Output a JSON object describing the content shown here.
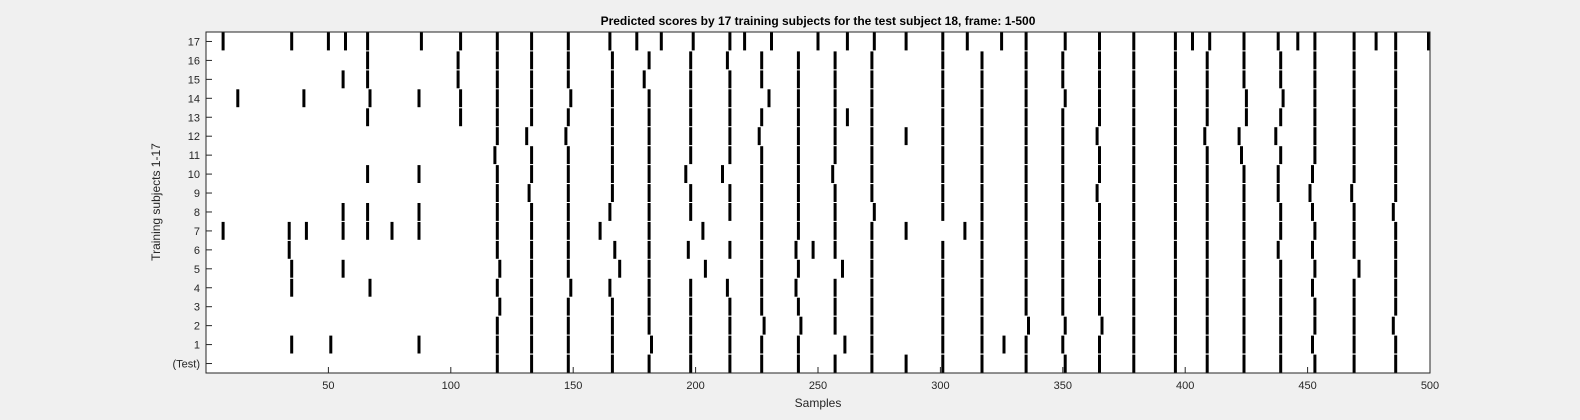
{
  "chart_data": {
    "type": "raster",
    "title": "Predicted scores by 17 training subjects for the test subject 18, frame: 1-500",
    "xlabel": "Samples",
    "ylabel": "Training subjects 1-17",
    "xlim": [
      0,
      500
    ],
    "xticks": [
      50,
      100,
      150,
      200,
      250,
      300,
      350,
      400,
      450,
      500
    ],
    "row_labels": [
      "17",
      "16",
      "15",
      "14",
      "13",
      "12",
      "11",
      "10",
      "9",
      "8",
      "7",
      "6",
      "5",
      "4",
      "3",
      "2",
      "1",
      "(Test)"
    ],
    "colors": {
      "background": "#f0f0f0",
      "plot": "#ffffff",
      "mark": "#000000"
    },
    "rows": [
      {
        "label": "17",
        "x": [
          7,
          35,
          50,
          57,
          66,
          88,
          104,
          119,
          133,
          148,
          165,
          176,
          186,
          199,
          214,
          220,
          231,
          250,
          262,
          273,
          286,
          301,
          311,
          325,
          335,
          351,
          365,
          379,
          396,
          403,
          410,
          424,
          438,
          446,
          453,
          469,
          478,
          486,
          500
        ]
      },
      {
        "label": "16",
        "x": [
          66,
          103,
          119,
          133,
          148,
          166,
          181,
          198,
          213,
          227,
          242,
          257,
          272,
          301,
          317,
          335,
          350,
          365,
          379,
          396,
          409,
          424,
          439,
          453,
          469,
          486
        ]
      },
      {
        "label": "15",
        "x": [
          56,
          66,
          103,
          119,
          133,
          148,
          166,
          179,
          198,
          214,
          227,
          242,
          257,
          272,
          301,
          317,
          335,
          350,
          365,
          379,
          396,
          409,
          424,
          439,
          453,
          469,
          486
        ]
      },
      {
        "label": "14",
        "x": [
          13,
          40,
          67,
          87,
          104,
          119,
          133,
          149,
          166,
          181,
          198,
          214,
          230,
          242,
          257,
          272,
          301,
          317,
          335,
          351,
          365,
          379,
          396,
          409,
          425,
          440,
          453,
          469,
          486
        ]
      },
      {
        "label": "13",
        "x": [
          66,
          104,
          119,
          133,
          148,
          166,
          181,
          198,
          214,
          227,
          242,
          257,
          262,
          272,
          301,
          317,
          335,
          350,
          365,
          379,
          396,
          409,
          425,
          439,
          453,
          469,
          486
        ]
      },
      {
        "label": "12",
        "x": [
          119,
          131,
          147,
          166,
          181,
          198,
          214,
          226,
          242,
          257,
          272,
          286,
          301,
          317,
          335,
          350,
          364,
          379,
          396,
          408,
          422,
          437,
          453,
          469,
          486
        ]
      },
      {
        "label": "11",
        "x": [
          118,
          133,
          148,
          166,
          181,
          198,
          214,
          227,
          242,
          257,
          272,
          301,
          317,
          335,
          350,
          365,
          379,
          396,
          409,
          423,
          439,
          453,
          469,
          486
        ]
      },
      {
        "label": "10",
        "x": [
          66,
          87,
          119,
          133,
          148,
          166,
          181,
          196,
          211,
          227,
          242,
          256,
          272,
          301,
          317,
          335,
          350,
          365,
          379,
          396,
          409,
          424,
          438,
          452,
          469,
          486
        ]
      },
      {
        "label": "9",
        "x": [
          119,
          132,
          148,
          166,
          181,
          198,
          214,
          227,
          242,
          257,
          272,
          301,
          317,
          335,
          350,
          364,
          379,
          396,
          409,
          424,
          438,
          451,
          468,
          486
        ]
      },
      {
        "label": "8",
        "x": [
          56,
          66,
          87,
          119,
          133,
          148,
          165,
          181,
          198,
          214,
          227,
          242,
          257,
          273,
          301,
          317,
          335,
          350,
          365,
          379,
          396,
          409,
          424,
          439,
          452,
          469,
          485
        ]
      },
      {
        "label": "7",
        "x": [
          7,
          34,
          41,
          56,
          66,
          76,
          87,
          119,
          133,
          148,
          161,
          181,
          203,
          227,
          242,
          257,
          272,
          286,
          310,
          317,
          335,
          350,
          365,
          379,
          396,
          409,
          424,
          439,
          453,
          469,
          486
        ]
      },
      {
        "label": "6",
        "x": [
          34,
          119,
          133,
          148,
          167,
          181,
          197,
          214,
          227,
          241,
          248,
          257,
          272,
          301,
          317,
          335,
          350,
          365,
          379,
          396,
          409,
          424,
          438,
          452,
          469,
          486
        ]
      },
      {
        "label": "5",
        "x": [
          35,
          56,
          120,
          133,
          148,
          169,
          181,
          204,
          227,
          242,
          260,
          272,
          301,
          317,
          335,
          350,
          365,
          379,
          396,
          409,
          424,
          439,
          453,
          471,
          486
        ]
      },
      {
        "label": "4",
        "x": [
          35,
          67,
          119,
          133,
          149,
          165,
          181,
          198,
          213,
          227,
          241,
          257,
          272,
          301,
          317,
          335,
          350,
          365,
          379,
          396,
          409,
          424,
          439,
          452,
          469,
          486
        ]
      },
      {
        "label": "3",
        "x": [
          120,
          133,
          148,
          166,
          181,
          198,
          214,
          227,
          242,
          257,
          272,
          301,
          317,
          335,
          350,
          365,
          379,
          396,
          409,
          424,
          439,
          453,
          469,
          486
        ]
      },
      {
        "label": "2",
        "x": [
          119,
          133,
          148,
          166,
          181,
          198,
          214,
          228,
          243,
          257,
          272,
          301,
          317,
          336,
          351,
          366,
          379,
          396,
          409,
          424,
          439,
          453,
          469,
          485
        ]
      },
      {
        "label": "1",
        "x": [
          35,
          51,
          87,
          119,
          133,
          148,
          166,
          182,
          198,
          214,
          227,
          242,
          261,
          272,
          301,
          317,
          326,
          335,
          350,
          365,
          379,
          396,
          409,
          424,
          439,
          452,
          469,
          486
        ]
      },
      {
        "label": "(Test)",
        "x": [
          119,
          133,
          148,
          166,
          181,
          198,
          214,
          227,
          242,
          257,
          272,
          286,
          301,
          317,
          335,
          351,
          365,
          379,
          396,
          409,
          424,
          439,
          453,
          469,
          486
        ]
      }
    ]
  }
}
